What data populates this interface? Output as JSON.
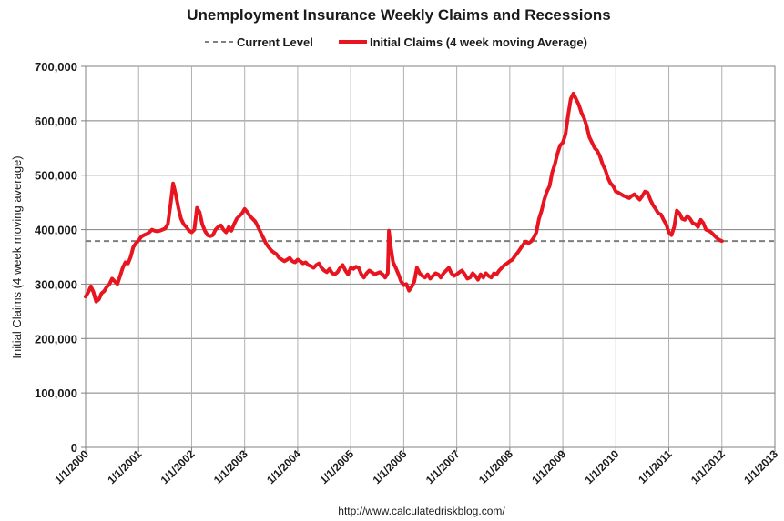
{
  "chart_data": {
    "type": "line",
    "title": "Unemployment Insurance Weekly Claims and Recessions",
    "ylabel": "Initial Claims (4 week moving average)",
    "xlabel": "",
    "source_note": "http://www.calculatedriskblog.com/",
    "ylim": [
      0,
      700000
    ],
    "xlim": [
      2000,
      2013
    ],
    "y_ticks": [
      {
        "value": 0,
        "label": "0"
      },
      {
        "value": 100000,
        "label": "100,000"
      },
      {
        "value": 200000,
        "label": "200,000"
      },
      {
        "value": 300000,
        "label": "300,000"
      },
      {
        "value": 400000,
        "label": "400,000"
      },
      {
        "value": 500000,
        "label": "500,000"
      },
      {
        "value": 600000,
        "label": "600,000"
      },
      {
        "value": 700000,
        "label": "700,000"
      }
    ],
    "x_ticks": [
      {
        "value": 2000,
        "label": "1/1/2000"
      },
      {
        "value": 2001,
        "label": "1/1/2001"
      },
      {
        "value": 2002,
        "label": "1/1/2002"
      },
      {
        "value": 2003,
        "label": "1/1/2003"
      },
      {
        "value": 2004,
        "label": "1/1/2004"
      },
      {
        "value": 2005,
        "label": "1/1/2005"
      },
      {
        "value": 2006,
        "label": "1/1/2006"
      },
      {
        "value": 2007,
        "label": "1/1/2007"
      },
      {
        "value": 2008,
        "label": "1/1/2008"
      },
      {
        "value": 2009,
        "label": "1/1/2009"
      },
      {
        "value": 2010,
        "label": "1/1/2010"
      },
      {
        "value": 2011,
        "label": "1/1/2011"
      },
      {
        "value": 2012,
        "label": "1/1/2012"
      },
      {
        "value": 2013,
        "label": "1/1/2013"
      }
    ],
    "grid": true,
    "legend_position": "top",
    "series": [
      {
        "name": "Current Level",
        "kind": "reference-line",
        "color": "#7f7f7f",
        "dashed": true,
        "value": 379000
      },
      {
        "name": "Initial Claims (4 week moving Average)",
        "kind": "line",
        "color": "#e8141f",
        "x": [
          2000.0,
          2000.05,
          2000.1,
          2000.15,
          2000.2,
          2000.25,
          2000.3,
          2000.35,
          2000.4,
          2000.45,
          2000.5,
          2000.55,
          2000.6,
          2000.65,
          2000.7,
          2000.75,
          2000.8,
          2000.85,
          2000.9,
          2000.95,
          2001.0,
          2001.05,
          2001.1,
          2001.15,
          2001.2,
          2001.25,
          2001.3,
          2001.35,
          2001.4,
          2001.45,
          2001.5,
          2001.55,
          2001.6,
          2001.65,
          2001.7,
          2001.75,
          2001.8,
          2001.85,
          2001.9,
          2001.95,
          2002.0,
          2002.05,
          2002.1,
          2002.15,
          2002.2,
          2002.25,
          2002.3,
          2002.35,
          2002.4,
          2002.45,
          2002.5,
          2002.55,
          2002.6,
          2002.65,
          2002.7,
          2002.75,
          2002.8,
          2002.85,
          2002.9,
          2002.95,
          2003.0,
          2003.05,
          2003.1,
          2003.15,
          2003.2,
          2003.25,
          2003.3,
          2003.35,
          2003.4,
          2003.45,
          2003.5,
          2003.55,
          2003.6,
          2003.65,
          2003.7,
          2003.75,
          2003.8,
          2003.85,
          2003.9,
          2003.95,
          2004.0,
          2004.05,
          2004.1,
          2004.15,
          2004.2,
          2004.25,
          2004.3,
          2004.35,
          2004.4,
          2004.45,
          2004.5,
          2004.55,
          2004.6,
          2004.65,
          2004.7,
          2004.75,
          2004.8,
          2004.85,
          2004.9,
          2004.95,
          2005.0,
          2005.05,
          2005.1,
          2005.15,
          2005.2,
          2005.25,
          2005.3,
          2005.35,
          2005.4,
          2005.45,
          2005.5,
          2005.55,
          2005.6,
          2005.65,
          2005.7,
          2005.72,
          2005.75,
          2005.8,
          2005.85,
          2005.9,
          2005.95,
          2006.0,
          2006.05,
          2006.1,
          2006.15,
          2006.2,
          2006.25,
          2006.3,
          2006.35,
          2006.4,
          2006.45,
          2006.5,
          2006.55,
          2006.6,
          2006.65,
          2006.7,
          2006.75,
          2006.8,
          2006.85,
          2006.9,
          2006.95,
          2007.0,
          2007.05,
          2007.1,
          2007.15,
          2007.2,
          2007.25,
          2007.3,
          2007.35,
          2007.4,
          2007.45,
          2007.5,
          2007.55,
          2007.6,
          2007.65,
          2007.7,
          2007.75,
          2007.8,
          2007.85,
          2007.9,
          2007.95,
          2008.0,
          2008.05,
          2008.1,
          2008.15,
          2008.2,
          2008.25,
          2008.3,
          2008.35,
          2008.4,
          2008.45,
          2008.5,
          2008.55,
          2008.6,
          2008.65,
          2008.7,
          2008.75,
          2008.8,
          2008.85,
          2008.9,
          2008.95,
          2009.0,
          2009.05,
          2009.1,
          2009.15,
          2009.2,
          2009.25,
          2009.3,
          2009.35,
          2009.4,
          2009.45,
          2009.5,
          2009.55,
          2009.6,
          2009.65,
          2009.7,
          2009.75,
          2009.8,
          2009.85,
          2009.9,
          2009.95,
          2010.0,
          2010.05,
          2010.1,
          2010.15,
          2010.2,
          2010.25,
          2010.3,
          2010.35,
          2010.4,
          2010.45,
          2010.5,
          2010.55,
          2010.6,
          2010.65,
          2010.7,
          2010.75,
          2010.8,
          2010.85,
          2010.9,
          2010.95,
          2011.0,
          2011.05,
          2011.1,
          2011.15,
          2011.2,
          2011.25,
          2011.3,
          2011.35,
          2011.4,
          2011.45,
          2011.5,
          2011.55,
          2011.6,
          2011.65,
          2011.7,
          2011.75,
          2011.8,
          2011.85,
          2011.9,
          2011.95,
          2012.0
        ],
        "y": [
          277000,
          285000,
          296000,
          285000,
          268000,
          272000,
          283000,
          287000,
          295000,
          300000,
          310000,
          305000,
          300000,
          315000,
          330000,
          340000,
          338000,
          350000,
          368000,
          375000,
          380000,
          387000,
          390000,
          392000,
          395000,
          400000,
          398000,
          397000,
          398000,
          400000,
          402000,
          410000,
          445000,
          485000,
          465000,
          440000,
          420000,
          410000,
          405000,
          398000,
          395000,
          400000,
          440000,
          432000,
          410000,
          398000,
          390000,
          388000,
          390000,
          400000,
          405000,
          408000,
          400000,
          395000,
          405000,
          398000,
          410000,
          420000,
          425000,
          430000,
          438000,
          432000,
          425000,
          420000,
          415000,
          405000,
          395000,
          385000,
          375000,
          368000,
          362000,
          358000,
          355000,
          348000,
          345000,
          342000,
          345000,
          348000,
          342000,
          340000,
          345000,
          342000,
          338000,
          340000,
          335000,
          333000,
          330000,
          335000,
          338000,
          330000,
          325000,
          322000,
          328000,
          320000,
          318000,
          322000,
          330000,
          335000,
          325000,
          318000,
          330000,
          328000,
          332000,
          330000,
          318000,
          312000,
          320000,
          325000,
          322000,
          318000,
          320000,
          322000,
          318000,
          312000,
          320000,
          398000,
          372000,
          340000,
          330000,
          318000,
          305000,
          298000,
          300000,
          288000,
          295000,
          305000,
          330000,
          320000,
          315000,
          312000,
          318000,
          310000,
          315000,
          320000,
          318000,
          312000,
          320000,
          325000,
          330000,
          320000,
          315000,
          318000,
          322000,
          325000,
          318000,
          310000,
          312000,
          320000,
          315000,
          308000,
          318000,
          312000,
          320000,
          315000,
          312000,
          320000,
          318000,
          325000,
          330000,
          335000,
          338000,
          342000,
          345000,
          352000,
          358000,
          365000,
          372000,
          378000,
          375000,
          378000,
          385000,
          395000,
          420000,
          435000,
          455000,
          470000,
          480000,
          505000,
          520000,
          540000,
          555000,
          560000,
          575000,
          610000,
          640000,
          650000,
          640000,
          630000,
          615000,
          605000,
          590000,
          570000,
          560000,
          550000,
          545000,
          535000,
          520000,
          510000,
          495000,
          485000,
          480000,
          470000,
          468000,
          465000,
          462000,
          460000,
          458000,
          462000,
          465000,
          460000,
          455000,
          462000,
          470000,
          468000,
          455000,
          445000,
          438000,
          430000,
          428000,
          418000,
          410000,
          395000,
          390000,
          405000,
          435000,
          430000,
          420000,
          418000,
          425000,
          420000,
          412000,
          410000,
          405000,
          418000,
          412000,
          400000,
          398000,
          395000,
          390000,
          385000,
          381000,
          379000
        ]
      }
    ]
  }
}
